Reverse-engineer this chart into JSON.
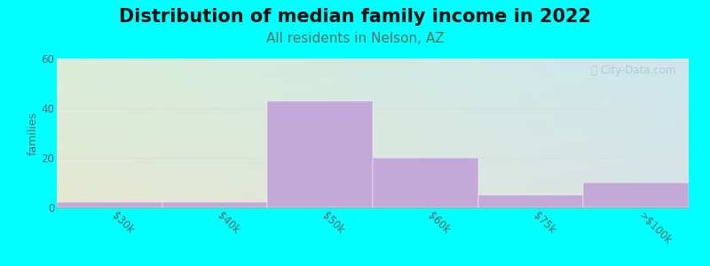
{
  "title": "Distribution of median family income in 2022",
  "subtitle": "All residents in Nelson, AZ",
  "categories": [
    "$30k",
    "$40k",
    "$50k",
    "$60k",
    "$75k",
    ">$100k"
  ],
  "values": [
    2,
    2,
    43,
    20,
    5,
    10
  ],
  "bar_color": "#c4a8d8",
  "ylabel": "families",
  "ylim": [
    0,
    60
  ],
  "yticks": [
    0,
    20,
    40,
    60
  ],
  "background_color": "#00ffff",
  "grad_top_left": "#d8efd0",
  "grad_top_right": "#d0e8f0",
  "grad_bottom_left": "#e8f8e0",
  "grad_bottom_right": "#e0f0f8",
  "title_fontsize": 15,
  "subtitle_fontsize": 11,
  "subtitle_color": "#607060",
  "watermark": "ⓘ City-Data.com",
  "watermark_color": "#b0c8cc",
  "grid_color": "#dddddd",
  "tick_color": "#666666",
  "tick_label_rotation": -45,
  "tick_label_ha": "left"
}
